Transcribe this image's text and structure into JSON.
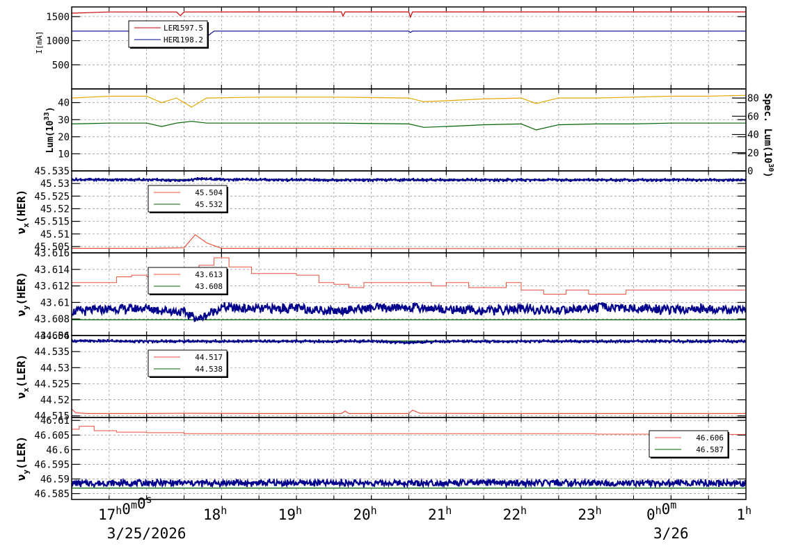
{
  "chart_data": [
    {
      "type": "line",
      "panel": "current",
      "ylabel": "I[mA]",
      "ylim": [
        0,
        1700
      ],
      "yticks": [
        500,
        1000,
        1500
      ],
      "ytick_labels": [
        "500",
        "1000",
        "1500"
      ],
      "grid": true,
      "legend_position": "top-left",
      "series": [
        {
          "name": "LER",
          "legend_value": "1597.5",
          "color": "#cc0000",
          "x": [
            16.0,
            16.5,
            17.4,
            17.45,
            17.5,
            18.5,
            19.6,
            19.62,
            19.65,
            20.5,
            20.52,
            20.55,
            21.5,
            22.5,
            23.5,
            24.5,
            25.0
          ],
          "values": [
            1570,
            1596,
            1596,
            1520,
            1596,
            1597,
            1597,
            1510,
            1597,
            1597,
            1490,
            1597,
            1597,
            1597,
            1597,
            1597,
            1597
          ]
        },
        {
          "name": "HER",
          "legend_value": "1198.2",
          "color": "#00008b",
          "x": [
            16.0,
            16.5,
            17.5,
            17.6,
            17.7,
            17.9,
            18.5,
            19.5,
            20.5,
            20.52,
            20.55,
            21.5,
            22.5,
            23.5,
            24.5,
            25.0
          ],
          "values": [
            1198,
            1198,
            1198,
            1100,
            960,
            1198,
            1198,
            1198,
            1198,
            1170,
            1198,
            1198,
            1198,
            1198,
            1198,
            1198
          ]
        }
      ]
    },
    {
      "type": "line",
      "panel": "luminosity",
      "ylabel": "Lum(10^33)",
      "ylabel_base": "Lum(10",
      "ylabel_exp": "33",
      "ylabel_end": ")",
      "ylim": [
        0,
        48
      ],
      "yticks": [
        10,
        20,
        30,
        40
      ],
      "ytick_labels": [
        "10",
        "20",
        "30",
        "40"
      ],
      "y2label": "Spec. Lum(10^30)",
      "y2label_base": "Spec. Lum(10",
      "y2label_exp": "30",
      "y2label_end": ")",
      "y2lim": [
        0,
        90
      ],
      "y2ticks": [
        0,
        20,
        40,
        60,
        80
      ],
      "y2tick_labels": [
        "0",
        "20",
        "40",
        "60",
        "80"
      ],
      "grid": true,
      "series": [
        {
          "axis": "y2",
          "color": "#e6a800",
          "x": [
            16.0,
            16.5,
            17.0,
            17.2,
            17.4,
            17.6,
            17.8,
            18.5,
            19.5,
            20.5,
            20.7,
            21.0,
            21.5,
            22.0,
            22.2,
            22.5,
            23.0,
            23.5,
            24.0,
            24.5,
            25.0
          ],
          "values": [
            80,
            82,
            82,
            75,
            80,
            70,
            80,
            81,
            81,
            80,
            76,
            77,
            79,
            80,
            74,
            80,
            80,
            81,
            82,
            82,
            83
          ]
        },
        {
          "axis": "y",
          "color": "#006400",
          "x": [
            16.0,
            16.5,
            17.0,
            17.2,
            17.4,
            17.6,
            17.8,
            18.5,
            19.5,
            20.5,
            20.7,
            21.0,
            21.5,
            22.0,
            22.2,
            22.5,
            23.0,
            23.5,
            24.0,
            24.5,
            25.0
          ],
          "values": [
            27.5,
            28,
            28,
            26,
            28,
            29,
            28,
            28,
            28,
            27.5,
            25.5,
            26,
            27,
            27.5,
            24,
            27,
            27.5,
            27.5,
            28,
            28,
            28
          ]
        }
      ]
    },
    {
      "type": "line",
      "panel": "nux_her",
      "ylabel": "nu_x(HER)",
      "ylabel_sym": "ν",
      "ylabel_sub": "x",
      "ylabel_rest": "(HER)",
      "ylim": [
        45.5025,
        45.535
      ],
      "yticks": [
        45.505,
        45.51,
        45.515,
        45.52,
        45.525,
        45.53,
        45.535
      ],
      "ytick_labels": [
        "45.505",
        "45.51",
        "45.515",
        "45.52",
        "45.525",
        "45.53",
        "45.535"
      ],
      "grid": true,
      "legend_position": "top-left",
      "series": [
        {
          "legend_value": "45.504",
          "color": "#e8503a",
          "x": [
            16.0,
            17.0,
            17.5,
            17.65,
            17.8,
            18.0,
            19.0,
            20.0,
            21.0,
            22.0,
            23.0,
            24.0,
            25.0
          ],
          "values": [
            45.5043,
            45.5043,
            45.5045,
            45.5097,
            45.5065,
            45.5043,
            45.5043,
            45.5042,
            45.5042,
            45.5042,
            45.5042,
            45.5042,
            45.5042
          ]
        },
        {
          "legend_value": "45.532",
          "color": "#006400",
          "x": [
            16.0,
            25.0
          ],
          "values": [
            45.5316,
            45.5316
          ]
        },
        {
          "color": "#00008b",
          "style": "dots",
          "x": [
            16.0,
            17.0,
            17.5,
            17.7,
            18.0,
            19.0,
            20.0,
            21.0,
            22.0,
            23.0,
            24.0,
            25.0
          ],
          "values": [
            45.5315,
            45.5315,
            45.5312,
            45.5318,
            45.5316,
            45.5314,
            45.5314,
            45.5314,
            45.5314,
            45.5314,
            45.5314,
            45.5314
          ]
        }
      ]
    },
    {
      "type": "line",
      "panel": "nuy_her",
      "ylabel": "nu_y(HER)",
      "ylabel_sym": "ν",
      "ylabel_sub": "y",
      "ylabel_rest": "(HER)",
      "ylim": [
        43.606,
        43.616
      ],
      "yticks": [
        43.606,
        43.608,
        43.61,
        43.612,
        43.614,
        43.616
      ],
      "ytick_labels": [
        "43.606",
        "43.608",
        "43.61",
        "43.612",
        "43.614",
        "43.616"
      ],
      "grid": true,
      "legend_position": "top-left",
      "series": [
        {
          "legend_value": "43.613",
          "color": "#e8503a",
          "style": "step",
          "x": [
            16.0,
            16.5,
            16.6,
            16.8,
            17.0,
            17.3,
            17.6,
            17.7,
            17.9,
            18.1,
            18.4,
            19.0,
            19.3,
            19.5,
            19.7,
            19.9,
            20.5,
            20.8,
            21.0,
            21.3,
            21.8,
            22.0,
            22.3,
            22.6,
            22.9,
            23.4,
            24.0,
            24.3,
            24.6,
            24.9,
            25.0
          ],
          "values": [
            43.6124,
            43.6124,
            43.6131,
            43.6133,
            43.6131,
            43.6129,
            43.613,
            43.6145,
            43.6154,
            43.6143,
            43.6135,
            43.6133,
            43.6124,
            43.6122,
            43.6118,
            43.6124,
            43.6124,
            43.612,
            43.6124,
            43.6118,
            43.6124,
            43.6115,
            43.611,
            43.6115,
            43.611,
            43.6115,
            43.6115,
            43.6115,
            43.6115,
            43.6115,
            43.6124
          ]
        },
        {
          "legend_value": "43.608",
          "color": "#006400",
          "x": [
            16.0,
            25.0
          ],
          "values": [
            43.6079,
            43.6079
          ]
        },
        {
          "color": "#00008b",
          "style": "dots",
          "x": [
            16.0,
            16.5,
            17.0,
            17.5,
            17.7,
            18.0,
            18.5,
            19.0,
            19.5,
            20.0,
            20.5,
            21.0,
            21.5,
            22.0,
            22.5,
            23.0,
            23.5,
            24.0,
            24.5,
            25.0
          ],
          "values": [
            43.6089,
            43.6092,
            43.6093,
            43.6088,
            43.608,
            43.6094,
            43.6092,
            43.6093,
            43.609,
            43.6093,
            43.6094,
            43.6092,
            43.609,
            43.6092,
            43.609,
            43.6094,
            43.6093,
            43.6091,
            43.6092,
            43.609
          ]
        }
      ]
    },
    {
      "type": "line",
      "panel": "nux_ler",
      "ylabel": "nu_x(LER)",
      "ylabel_sym": "ν",
      "ylabel_sub": "x",
      "ylabel_rest": "(LER)",
      "ylim": [
        44.5145,
        44.54
      ],
      "yticks": [
        44.515,
        44.52,
        44.525,
        44.53,
        44.535,
        44.54
      ],
      "ytick_labels": [
        "44.515",
        "44.52",
        "44.525",
        "44.53",
        "44.535",
        "44.54"
      ],
      "grid": true,
      "legend_position": "top-left",
      "series": [
        {
          "legend_value": "44.517",
          "color": "#e8503a",
          "x": [
            16.0,
            16.05,
            16.2,
            17.0,
            17.5,
            18.5,
            19.6,
            19.65,
            19.7,
            20.5,
            20.55,
            20.65,
            21.5,
            22.5,
            23.5,
            24.5,
            25.0
          ],
          "values": [
            44.5172,
            44.516,
            44.5157,
            44.5157,
            44.5158,
            44.5157,
            44.5157,
            44.5165,
            44.5157,
            44.5157,
            44.5168,
            44.5158,
            44.5157,
            44.5157,
            44.5157,
            44.5157,
            44.5157
          ]
        },
        {
          "legend_value": "44.538",
          "color": "#006400",
          "x": [
            16.0,
            25.0
          ],
          "values": [
            44.5383,
            44.5383
          ]
        },
        {
          "color": "#00008b",
          "style": "dots",
          "x": [
            16.0,
            17.0,
            18.0,
            19.0,
            20.0,
            20.5,
            21.0,
            22.0,
            23.0,
            24.0,
            25.0
          ],
          "values": [
            44.5383,
            44.5382,
            44.5382,
            44.5382,
            44.5382,
            44.5378,
            44.5382,
            44.5382,
            44.5382,
            44.5382,
            44.5382
          ]
        }
      ]
    },
    {
      "type": "line",
      "panel": "nuy_ler",
      "ylabel": "nu_y(LER)",
      "ylabel_sym": "ν",
      "ylabel_sub": "y",
      "ylabel_rest": "(LER)",
      "ylim": [
        46.583,
        46.611
      ],
      "yticks": [
        46.585,
        46.59,
        46.595,
        46.6,
        46.605,
        46.61
      ],
      "ytick_labels": [
        "46.585",
        "46.59",
        "46.595",
        "46.6",
        "46.605",
        "46.61"
      ],
      "grid": true,
      "legend_position": "top-right",
      "series": [
        {
          "legend_value": "46.606",
          "color": "#e8503a",
          "style": "step",
          "x": [
            16.0,
            16.1,
            16.3,
            16.6,
            17.0,
            17.5,
            18.0,
            19.0,
            20.0,
            21.0,
            22.0,
            23.0,
            24.0,
            24.5,
            25.0
          ],
          "values": [
            46.607,
            46.608,
            46.6065,
            46.606,
            46.6058,
            46.6055,
            46.6055,
            46.6055,
            46.6055,
            46.6055,
            46.6055,
            46.6053,
            46.6053,
            46.6052,
            46.605
          ]
        },
        {
          "legend_value": "46.587",
          "color": "#006400",
          "x": [
            16.0,
            25.0
          ],
          "values": [
            46.5869,
            46.5869
          ]
        },
        {
          "color": "#00008b",
          "style": "dots",
          "x": [
            16.0,
            17.0,
            18.0,
            19.0,
            20.0,
            21.0,
            22.0,
            23.0,
            24.0,
            25.0
          ],
          "values": [
            46.5885,
            46.5886,
            46.5886,
            46.5886,
            46.5886,
            46.5886,
            46.5886,
            46.5886,
            46.5886,
            46.5886
          ]
        }
      ]
    }
  ],
  "time_axis": {
    "range_hours": [
      16.0,
      25.0
    ],
    "grid_hours": [
      16.5,
      17.0,
      17.5,
      18.0,
      18.5,
      19.0,
      19.5,
      20.0,
      20.5,
      21.0,
      21.5,
      22.0,
      22.5,
      23.0,
      23.5,
      24.0,
      24.5
    ],
    "labels": [
      {
        "hour": 17,
        "main": "17",
        "parts": [
          {
            "t": "17"
          },
          {
            "t": "h",
            "sup": true
          },
          {
            "t": "0"
          },
          {
            "t": "m",
            "sup": true
          },
          {
            "t": "0"
          },
          {
            "t": "s",
            "sup": true
          }
        ]
      },
      {
        "hour": 18,
        "parts": [
          {
            "t": "18"
          },
          {
            "t": "h",
            "sup": true
          }
        ]
      },
      {
        "hour": 19,
        "parts": [
          {
            "t": "19"
          },
          {
            "t": "h",
            "sup": true
          }
        ]
      },
      {
        "hour": 20,
        "parts": [
          {
            "t": "20"
          },
          {
            "t": "h",
            "sup": true
          }
        ]
      },
      {
        "hour": 21,
        "parts": [
          {
            "t": "21"
          },
          {
            "t": "h",
            "sup": true
          }
        ]
      },
      {
        "hour": 22,
        "parts": [
          {
            "t": "22"
          },
          {
            "t": "h",
            "sup": true
          }
        ]
      },
      {
        "hour": 23,
        "parts": [
          {
            "t": "23"
          },
          {
            "t": "h",
            "sup": true
          }
        ]
      },
      {
        "hour": 24,
        "parts": [
          {
            "t": "0"
          },
          {
            "t": "h",
            "sup": true
          },
          {
            "t": "0"
          },
          {
            "t": "m",
            "sup": true
          }
        ]
      },
      {
        "hour": 25,
        "parts": [
          {
            "t": "1"
          },
          {
            "t": "h",
            "sup": true
          }
        ]
      }
    ],
    "dates": [
      {
        "hour": 17,
        "text": "3/25/2026"
      },
      {
        "hour": 24,
        "text": "3/26"
      }
    ]
  }
}
